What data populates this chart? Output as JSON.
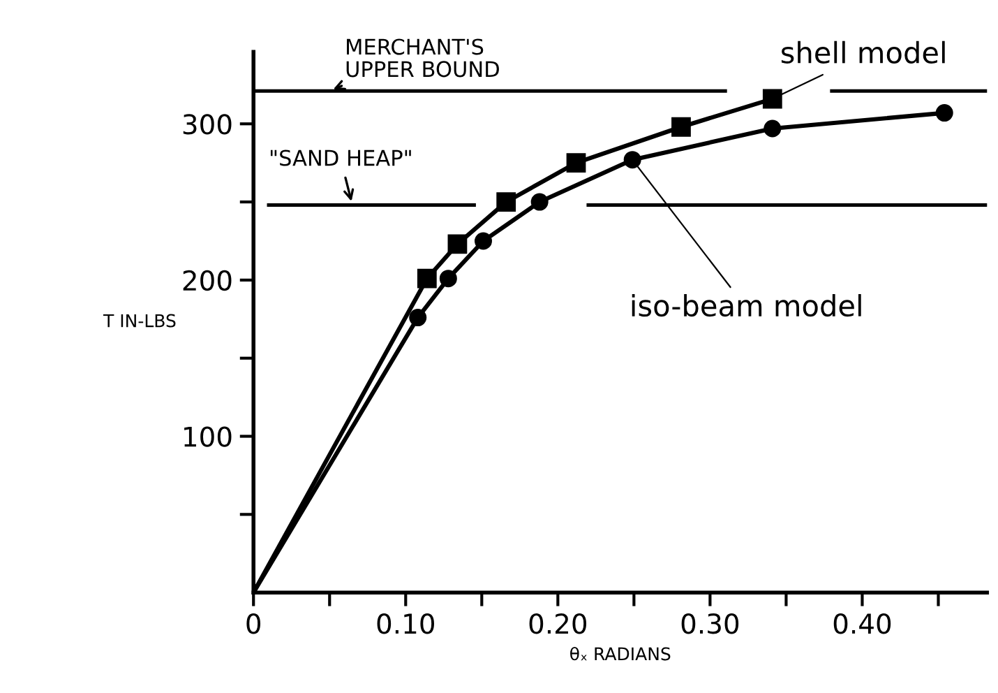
{
  "chart_data": {
    "type": "line",
    "xlabel": "θₓ RADIANS",
    "ylabel": "T IN-LBS",
    "xlim": [
      0,
      0.482
    ],
    "ylim": [
      0,
      346
    ],
    "xticks": [
      {
        "value": 0,
        "label": "0"
      },
      {
        "value": 0.05,
        "label": null
      },
      {
        "value": 0.1,
        "label": "0.10"
      },
      {
        "value": 0.15,
        "label": null
      },
      {
        "value": 0.2,
        "label": "0.20"
      },
      {
        "value": 0.25,
        "label": null
      },
      {
        "value": 0.3,
        "label": "0.30"
      },
      {
        "value": 0.35,
        "label": null
      },
      {
        "value": 0.4,
        "label": "0.40"
      },
      {
        "value": 0.45,
        "label": null
      }
    ],
    "yticks": [
      {
        "value": 50,
        "label": null
      },
      100,
      {
        "value": 150,
        "label": null
      },
      200,
      {
        "value": 250,
        "label": null
      },
      300
    ],
    "grid": false,
    "legend": false,
    "series": [
      {
        "name": "shell model",
        "color": "#000000",
        "marker": "square",
        "x": [
          0,
          0.114,
          0.134,
          0.166,
          0.212,
          0.281,
          0.341
        ],
        "values": [
          0,
          201,
          223,
          250,
          275,
          298,
          316
        ]
      },
      {
        "name": "iso-beam model",
        "color": "#000000",
        "marker": "circle",
        "x": [
          0,
          0.108,
          0.128,
          0.151,
          0.188,
          0.249,
          0.341,
          0.454
        ],
        "values": [
          0,
          176,
          201,
          225,
          250,
          277,
          297,
          307
        ]
      }
    ],
    "ref_lines": [
      {
        "axis": "y",
        "value": 321,
        "label": "MERCHANT'S\nUPPER BOUND",
        "color": "#000000"
      },
      {
        "axis": "y",
        "value": 248,
        "label": "\"SAND HEAP\"",
        "color": "#000000"
      }
    ]
  }
}
